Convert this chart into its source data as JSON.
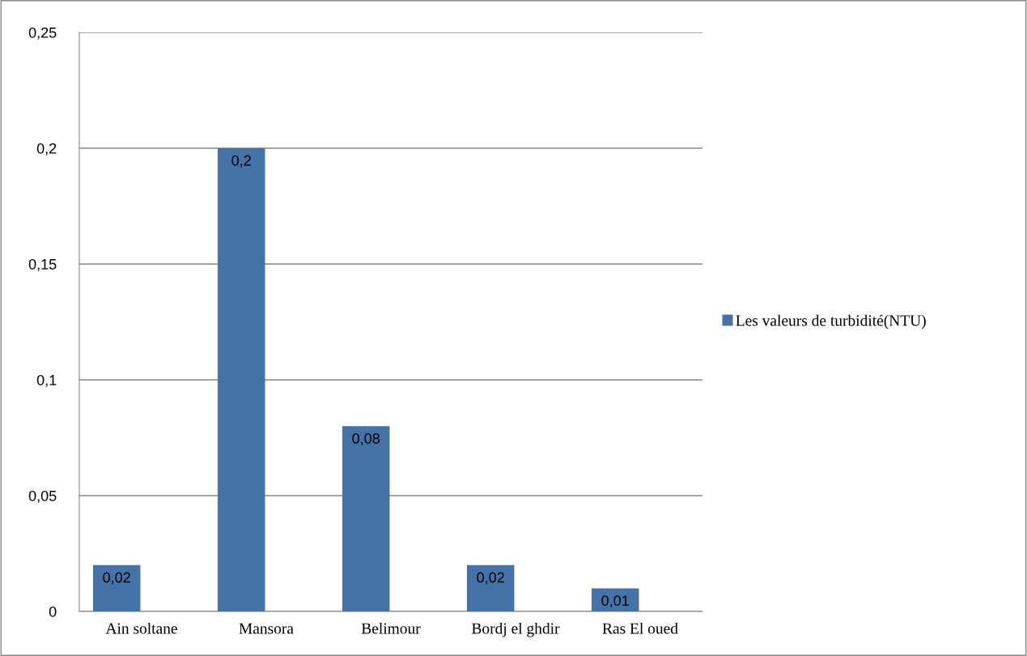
{
  "chart_data": {
    "type": "bar",
    "categories": [
      "Ain soltane",
      "Mansora",
      "Belimour",
      "Bordj el ghdir",
      "Ras El oued"
    ],
    "series": [
      {
        "name": "Les valeurs de turbidité(NTU)",
        "color": "#4572a7",
        "values": [
          0.02,
          0.2,
          0.08,
          0.02,
          0.01
        ],
        "value_labels": [
          "0,02",
          "0,2",
          "0,08",
          "0,02",
          "0,01"
        ]
      }
    ],
    "ylim": [
      0,
      0.25
    ],
    "yticks": [
      {
        "value": 0,
        "label": "0"
      },
      {
        "value": 0.05,
        "label": "0,05"
      },
      {
        "value": 0.1,
        "label": "0,1"
      },
      {
        "value": 0.15,
        "label": "0,15"
      },
      {
        "value": 0.2,
        "label": "0,2"
      },
      {
        "value": 0.25,
        "label": "0,25"
      }
    ],
    "grid": "y",
    "legend": "right"
  }
}
